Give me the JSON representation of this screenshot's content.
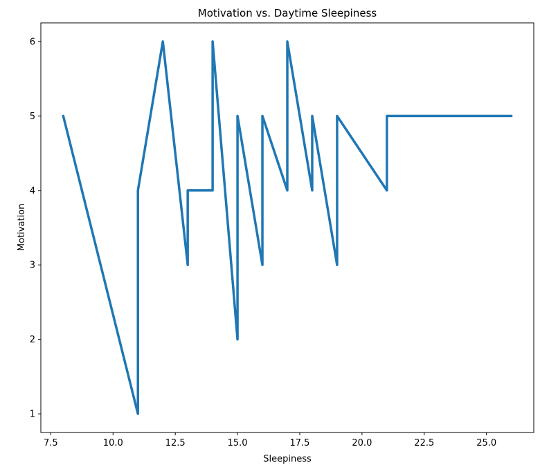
{
  "chart_data": {
    "type": "line",
    "title": "Motivation vs. Daytime Sleepiness",
    "xlabel": "Sleepiness",
    "ylabel": "Motivation",
    "xlim": [
      7.1,
      26.9
    ],
    "ylim": [
      0.75,
      6.25
    ],
    "xticks": [
      "7.5",
      "10.0",
      "12.5",
      "15.0",
      "17.5",
      "20.0",
      "22.5",
      "25.0"
    ],
    "yticks": [
      "1",
      "2",
      "3",
      "4",
      "5",
      "6"
    ],
    "grid": false,
    "legend": "none",
    "series": [
      {
        "color": "#1f77b4",
        "x": [
          8,
          11,
          11,
          12,
          13,
          13,
          14,
          14,
          15,
          15,
          16,
          16,
          17,
          17,
          18,
          18,
          19,
          19,
          21,
          21,
          26
        ],
        "y": [
          5,
          1,
          4,
          6,
          3,
          4,
          4,
          6,
          2,
          5,
          3,
          5,
          4,
          6,
          4,
          5,
          3,
          5,
          4,
          5,
          5
        ]
      }
    ]
  }
}
